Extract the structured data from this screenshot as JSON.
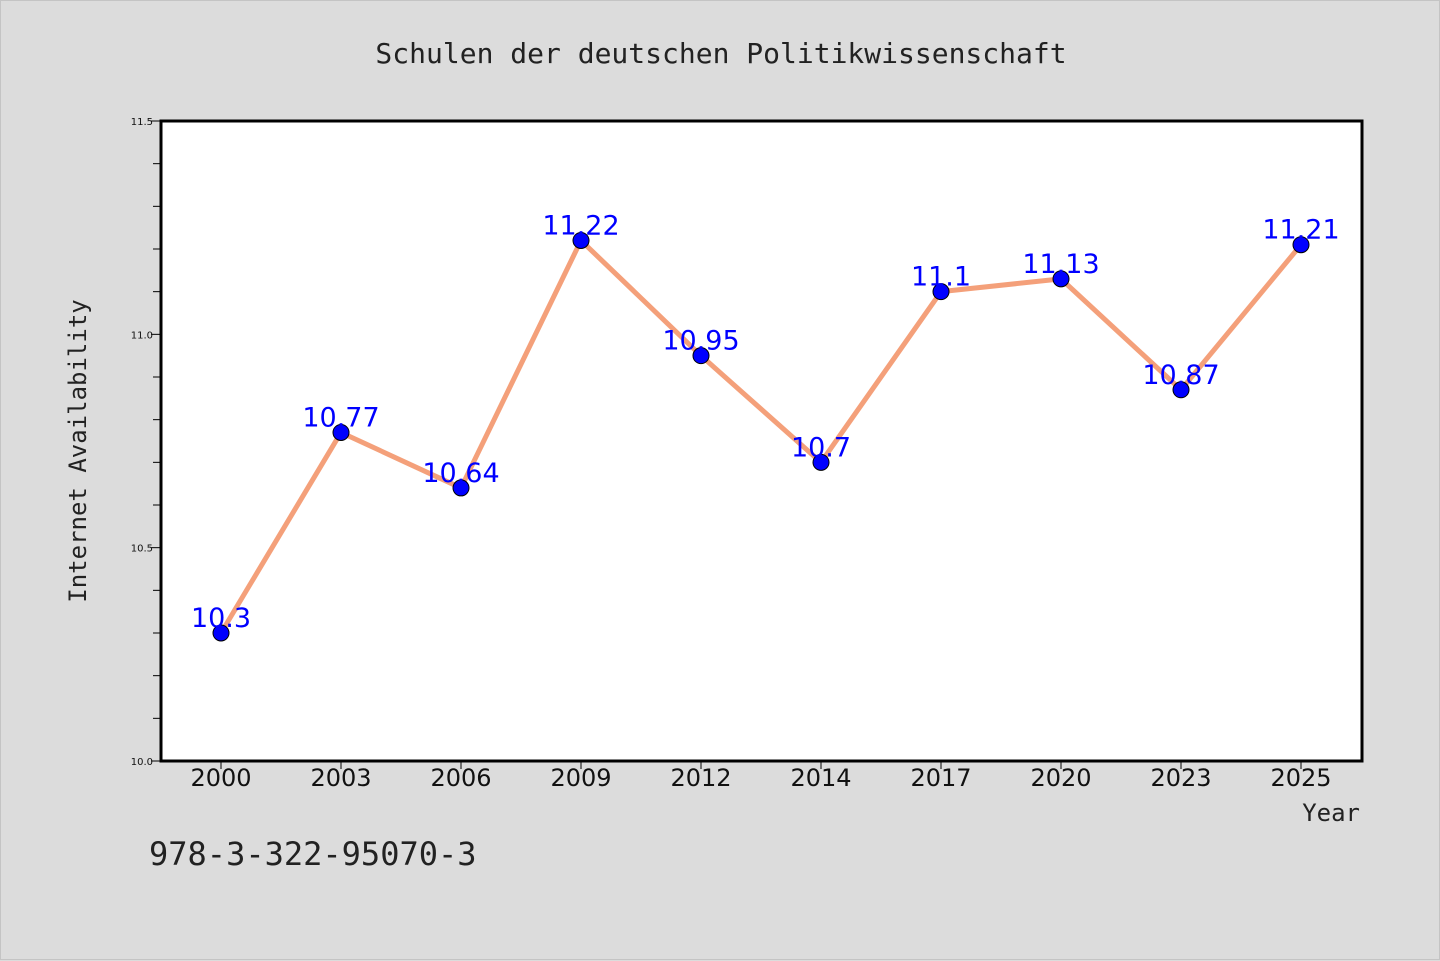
{
  "chart_data": {
    "type": "line",
    "title": "Schulen der deutschen Politikwissenschaft",
    "xlabel": "Year",
    "ylabel": "Internet Availability",
    "categories": [
      "2000",
      "2003",
      "2006",
      "2009",
      "2012",
      "2014",
      "2017",
      "2020",
      "2023",
      "2025"
    ],
    "series": [
      {
        "values": [
          10.3,
          10.77,
          10.64,
          11.22,
          10.95,
          10.7,
          11.1,
          11.13,
          10.87,
          11.21
        ],
        "line_color": "#f4a07a",
        "marker_color": "#0000ff"
      }
    ],
    "data_labels": [
      "10.3",
      "10.77",
      "10.64",
      "11.22",
      "10.95",
      "10.7",
      "11.1",
      "11.13",
      "10.87",
      "11.21"
    ],
    "ylim": [
      10.0,
      11.5
    ],
    "yticks": [
      "10.0",
      "10.5",
      "11.0",
      "11.5"
    ],
    "grid": false,
    "legend": "none"
  },
  "footer": {
    "isbn": "978-3-322-95070-3"
  },
  "colors": {
    "background": "#dcdcdc",
    "plot_area": "#ffffff",
    "line": "#f4a07a",
    "marker": "#0000ff",
    "data_label": "#0000ff"
  }
}
